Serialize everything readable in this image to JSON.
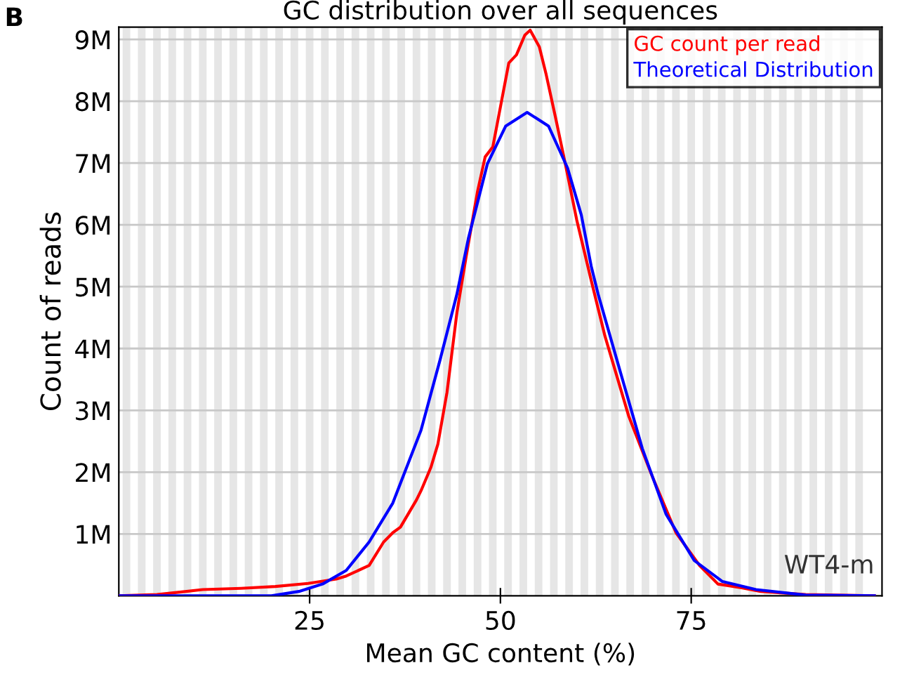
{
  "chart_data": {
    "type": "line",
    "title": "GC distribution over all sequences",
    "xlabel": "Mean GC content (%)",
    "ylabel": "Count of reads",
    "annotations": [
      "B",
      "WT4-m"
    ],
    "xlim": [
      0,
      100
    ],
    "xticks": [
      25,
      50,
      75
    ],
    "ylim": [
      0,
      9200000
    ],
    "yticks": [
      {
        "value": 1000000,
        "label": "1M"
      },
      {
        "value": 2000000,
        "label": "2M"
      },
      {
        "value": 3000000,
        "label": "3M"
      },
      {
        "value": 4000000,
        "label": "4M"
      },
      {
        "value": 5000000,
        "label": "5M"
      },
      {
        "value": 6000000,
        "label": "6M"
      },
      {
        "value": 7000000,
        "label": "7M"
      },
      {
        "value": 8000000,
        "label": "8M"
      },
      {
        "value": 9000000,
        "label": "9M"
      }
    ],
    "grid": "y",
    "legend": "top right",
    "marker": "none",
    "line_style": "solid",
    "series": [
      {
        "name": "GC count per read",
        "color": "#ff0000",
        "x": [
          0,
          5,
          11,
          16,
          20.5,
          24.8,
          28.5,
          29.8,
          32.8,
          34.7,
          35.9,
          36.9,
          39.0,
          39.6,
          40.9,
          41.8,
          43.0,
          44.3,
          45.5,
          47.0,
          48.0,
          49.0,
          51.1,
          52.1,
          53.2,
          53.9,
          55.1,
          56.0,
          57.2,
          58.5,
          60.0,
          61.9,
          63.7,
          66.8,
          69.9,
          73.0,
          76.1,
          78.5,
          81.6,
          84.1,
          90,
          99
        ],
        "values": [
          0,
          20000,
          100000,
          120000,
          150000,
          200000,
          270000,
          320000,
          490000,
          870000,
          1020000,
          1110000,
          1550000,
          1700000,
          2080000,
          2450000,
          3290000,
          4580000,
          5480000,
          6540000,
          7100000,
          7260000,
          8620000,
          8750000,
          9070000,
          9150000,
          8880000,
          8430000,
          7750000,
          6990000,
          6080000,
          5100000,
          4200000,
          2910000,
          1930000,
          1020000,
          490000,
          190000,
          130000,
          70000,
          20000,
          0
        ]
      },
      {
        "name": "Theoretical Distribution",
        "color": "#0000ff",
        "x": [
          0,
          10,
          20,
          23.6,
          26.7,
          29.8,
          32.8,
          35.9,
          39.6,
          42.1,
          44.3,
          45.8,
          48.3,
          50.7,
          53.5,
          56.3,
          58.8,
          60.6,
          61.9,
          62.8,
          65.6,
          68.6,
          71.7,
          75.4,
          79.1,
          83.5,
          90,
          99
        ],
        "values": [
          0,
          0,
          0,
          70000,
          190000,
          410000,
          870000,
          1500000,
          2680000,
          3820000,
          4880000,
          5780000,
          6990000,
          7600000,
          7820000,
          7600000,
          6920000,
          6160000,
          5330000,
          4880000,
          3670000,
          2380000,
          1320000,
          570000,
          230000,
          100000,
          10000,
          0
        ]
      }
    ],
    "bands": [
      {
        "axis": "x",
        "from": 0.5,
        "to": 1.5,
        "color": "#e6e6e6"
      },
      {
        "axis": "x",
        "from": 2.5,
        "to": 3.5,
        "color": "#e6e6e6"
      },
      {
        "axis": "x",
        "from": 4.5,
        "to": 5.5,
        "color": "#e6e6e6"
      },
      {
        "axis": "x",
        "from": 6.5,
        "to": 7.5,
        "color": "#e6e6e6"
      },
      {
        "axis": "x",
        "from": 8.5,
        "to": 9.5,
        "color": "#e6e6e6"
      },
      {
        "axis": "x",
        "from": 10.5,
        "to": 11.5,
        "color": "#e6e6e6"
      },
      {
        "axis": "x",
        "from": 12.5,
        "to": 13.5,
        "color": "#e6e6e6"
      },
      {
        "axis": "x",
        "from": 14.5,
        "to": 15.5,
        "color": "#e6e6e6"
      },
      {
        "axis": "x",
        "from": 16.5,
        "to": 17.5,
        "color": "#e6e6e6"
      },
      {
        "axis": "x",
        "from": 18.5,
        "to": 19.5,
        "color": "#e6e6e6"
      },
      {
        "axis": "x",
        "from": 20.5,
        "to": 21.5,
        "color": "#e6e6e6"
      },
      {
        "axis": "x",
        "from": 22.5,
        "to": 23.5,
        "color": "#e6e6e6"
      },
      {
        "axis": "x",
        "from": 24.5,
        "to": 25.5,
        "color": "#e6e6e6"
      },
      {
        "axis": "x",
        "from": 26.5,
        "to": 27.5,
        "color": "#e6e6e6"
      },
      {
        "axis": "x",
        "from": 28.5,
        "to": 29.5,
        "color": "#e6e6e6"
      },
      {
        "axis": "x",
        "from": 30.5,
        "to": 31.5,
        "color": "#e6e6e6"
      },
      {
        "axis": "x",
        "from": 32.5,
        "to": 33.5,
        "color": "#e6e6e6"
      },
      {
        "axis": "x",
        "from": 34.5,
        "to": 35.5,
        "color": "#e6e6e6"
      },
      {
        "axis": "x",
        "from": 36.5,
        "to": 37.5,
        "color": "#e6e6e6"
      },
      {
        "axis": "x",
        "from": 38.5,
        "to": 39.5,
        "color": "#e6e6e6"
      },
      {
        "axis": "x",
        "from": 40.5,
        "to": 41.5,
        "color": "#e6e6e6"
      },
      {
        "axis": "x",
        "from": 42.5,
        "to": 43.5,
        "color": "#e6e6e6"
      },
      {
        "axis": "x",
        "from": 44.5,
        "to": 45.5,
        "color": "#e6e6e6"
      },
      {
        "axis": "x",
        "from": 46.5,
        "to": 47.5,
        "color": "#e6e6e6"
      },
      {
        "axis": "x",
        "from": 48.5,
        "to": 49.5,
        "color": "#e6e6e6"
      },
      {
        "axis": "x",
        "from": 50.5,
        "to": 51.5,
        "color": "#e6e6e6"
      },
      {
        "axis": "x",
        "from": 52.5,
        "to": 53.5,
        "color": "#e6e6e6"
      },
      {
        "axis": "x",
        "from": 54.5,
        "to": 55.5,
        "color": "#e6e6e6"
      },
      {
        "axis": "x",
        "from": 56.5,
        "to": 57.5,
        "color": "#e6e6e6"
      },
      {
        "axis": "x",
        "from": 58.5,
        "to": 59.5,
        "color": "#e6e6e6"
      },
      {
        "axis": "x",
        "from": 60.5,
        "to": 61.5,
        "color": "#e6e6e6"
      },
      {
        "axis": "x",
        "from": 62.5,
        "to": 63.5,
        "color": "#e6e6e6"
      },
      {
        "axis": "x",
        "from": 64.5,
        "to": 65.5,
        "color": "#e6e6e6"
      },
      {
        "axis": "x",
        "from": 66.5,
        "to": 67.5,
        "color": "#e6e6e6"
      },
      {
        "axis": "x",
        "from": 68.5,
        "to": 69.5,
        "color": "#e6e6e6"
      },
      {
        "axis": "x",
        "from": 70.5,
        "to": 71.5,
        "color": "#e6e6e6"
      },
      {
        "axis": "x",
        "from": 72.5,
        "to": 73.5,
        "color": "#e6e6e6"
      },
      {
        "axis": "x",
        "from": 74.5,
        "to": 75.5,
        "color": "#e6e6e6"
      },
      {
        "axis": "x",
        "from": 76.5,
        "to": 77.5,
        "color": "#e6e6e6"
      },
      {
        "axis": "x",
        "from": 78.5,
        "to": 79.5,
        "color": "#e6e6e6"
      },
      {
        "axis": "x",
        "from": 80.5,
        "to": 81.5,
        "color": "#e6e6e6"
      },
      {
        "axis": "x",
        "from": 82.5,
        "to": 83.5,
        "color": "#e6e6e6"
      },
      {
        "axis": "x",
        "from": 84.5,
        "to": 85.5,
        "color": "#e6e6e6"
      },
      {
        "axis": "x",
        "from": 86.5,
        "to": 87.5,
        "color": "#e6e6e6"
      },
      {
        "axis": "x",
        "from": 88.5,
        "to": 89.5,
        "color": "#e6e6e6"
      },
      {
        "axis": "x",
        "from": 90.5,
        "to": 91.5,
        "color": "#e6e6e6"
      },
      {
        "axis": "x",
        "from": 92.5,
        "to": 93.5,
        "color": "#e6e6e6"
      },
      {
        "axis": "x",
        "from": 94.5,
        "to": 95.5,
        "color": "#e6e6e6"
      },
      {
        "axis": "x",
        "from": 96.5,
        "to": 97.5,
        "color": "#e6e6e6"
      }
    ]
  }
}
